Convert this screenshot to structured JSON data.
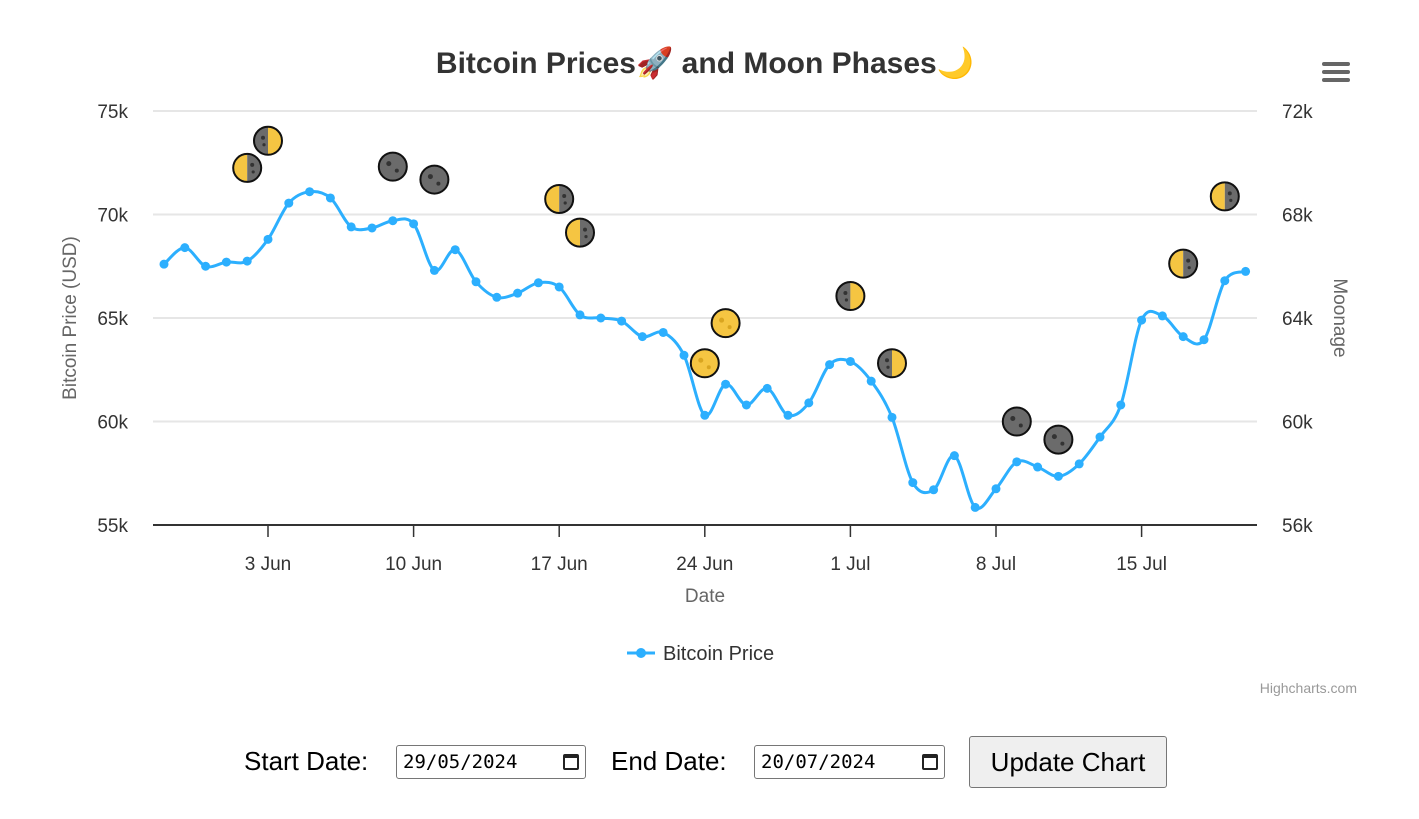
{
  "chart_data": {
    "type": "line",
    "title": "Bitcoin Prices🚀 and Moon Phases🌙",
    "xlabel": "Date",
    "ylabel": "Bitcoin Price (USD)",
    "y2label": "Moonage",
    "ylim": [
      55000,
      75000
    ],
    "y2lim": [
      56000,
      72000
    ],
    "yticks": [
      "55k",
      "60k",
      "65k",
      "70k",
      "75k"
    ],
    "y2ticks": [
      "56k",
      "60k",
      "64k",
      "68k",
      "72k"
    ],
    "xticks": [
      "3 Jun",
      "10 Jun",
      "17 Jun",
      "24 Jun",
      "1 Jul",
      "8 Jul",
      "15 Jul"
    ],
    "grid": true,
    "legend_position": "bottom-center",
    "series": [
      {
        "name": "Bitcoin Price",
        "color": "#2caffe",
        "x": [
          "2024-05-29",
          "2024-05-30",
          "2024-05-31",
          "2024-06-01",
          "2024-06-02",
          "2024-06-03",
          "2024-06-04",
          "2024-06-05",
          "2024-06-06",
          "2024-06-07",
          "2024-06-08",
          "2024-06-09",
          "2024-06-10",
          "2024-06-11",
          "2024-06-12",
          "2024-06-13",
          "2024-06-14",
          "2024-06-15",
          "2024-06-16",
          "2024-06-17",
          "2024-06-18",
          "2024-06-19",
          "2024-06-20",
          "2024-06-21",
          "2024-06-22",
          "2024-06-23",
          "2024-06-24",
          "2024-06-25",
          "2024-06-26",
          "2024-06-27",
          "2024-06-28",
          "2024-06-29",
          "2024-06-30",
          "2024-07-01",
          "2024-07-02",
          "2024-07-03",
          "2024-07-04",
          "2024-07-05",
          "2024-07-06",
          "2024-07-07",
          "2024-07-08",
          "2024-07-09",
          "2024-07-10",
          "2024-07-11",
          "2024-07-12",
          "2024-07-13",
          "2024-07-14",
          "2024-07-15",
          "2024-07-16",
          "2024-07-17",
          "2024-07-18",
          "2024-07-19",
          "2024-07-20"
        ],
        "values": [
          67600,
          68400,
          67500,
          67700,
          67750,
          68800,
          70550,
          71100,
          70800,
          69400,
          69350,
          69700,
          69550,
          67300,
          68300,
          66750,
          66000,
          66200,
          66700,
          66500,
          65150,
          65000,
          64850,
          64100,
          64300,
          63200,
          60300,
          61800,
          60800,
          61600,
          60300,
          60900,
          62750,
          62900,
          61950,
          60200,
          57050,
          56700,
          58350,
          55850,
          56750,
          58050,
          57800,
          57350,
          57950,
          59250,
          60800,
          64900,
          65100,
          64100,
          63950,
          66800,
          67250
        ]
      }
    ],
    "moon_phases": {
      "y_axis": "secondary",
      "points": [
        {
          "x": "2024-06-02",
          "y": 69800,
          "icon": "first-quarter-moon-icon"
        },
        {
          "x": "2024-06-03",
          "y": 70850,
          "icon": "last-quarter-moon-icon"
        },
        {
          "x": "2024-06-09",
          "y": 69850,
          "icon": "new-moon-icon"
        },
        {
          "x": "2024-06-11",
          "y": 69350,
          "icon": "new-moon-icon"
        },
        {
          "x": "2024-06-17",
          "y": 68600,
          "icon": "first-quarter-moon-icon"
        },
        {
          "x": "2024-06-18",
          "y": 67300,
          "icon": "first-quarter-moon-icon"
        },
        {
          "x": "2024-06-24",
          "y": 62250,
          "icon": "full-moon-icon"
        },
        {
          "x": "2024-06-25",
          "y": 63800,
          "icon": "full-moon-icon"
        },
        {
          "x": "2024-07-01",
          "y": 64850,
          "icon": "last-quarter-moon-icon"
        },
        {
          "x": "2024-07-03",
          "y": 62250,
          "icon": "last-quarter-moon-icon"
        },
        {
          "x": "2024-07-09",
          "y": 60000,
          "icon": "new-moon-icon"
        },
        {
          "x": "2024-07-11",
          "y": 59300,
          "icon": "new-moon-icon"
        },
        {
          "x": "2024-07-17",
          "y": 66100,
          "icon": "first-quarter-moon-icon"
        },
        {
          "x": "2024-07-19",
          "y": 68700,
          "icon": "first-quarter-moon-icon"
        }
      ]
    },
    "credits": "Highcharts.com"
  },
  "controls": {
    "start_label": "Start Date:",
    "start_value": "29/05/2024",
    "end_label": "End Date:",
    "end_value": "20/07/2024",
    "update_label": "Update Chart"
  },
  "colors": {
    "series": "#2caffe",
    "moon_yellow": "#f5c542",
    "moon_dark": "#6b6b6b",
    "grid": "#e6e6e6"
  }
}
